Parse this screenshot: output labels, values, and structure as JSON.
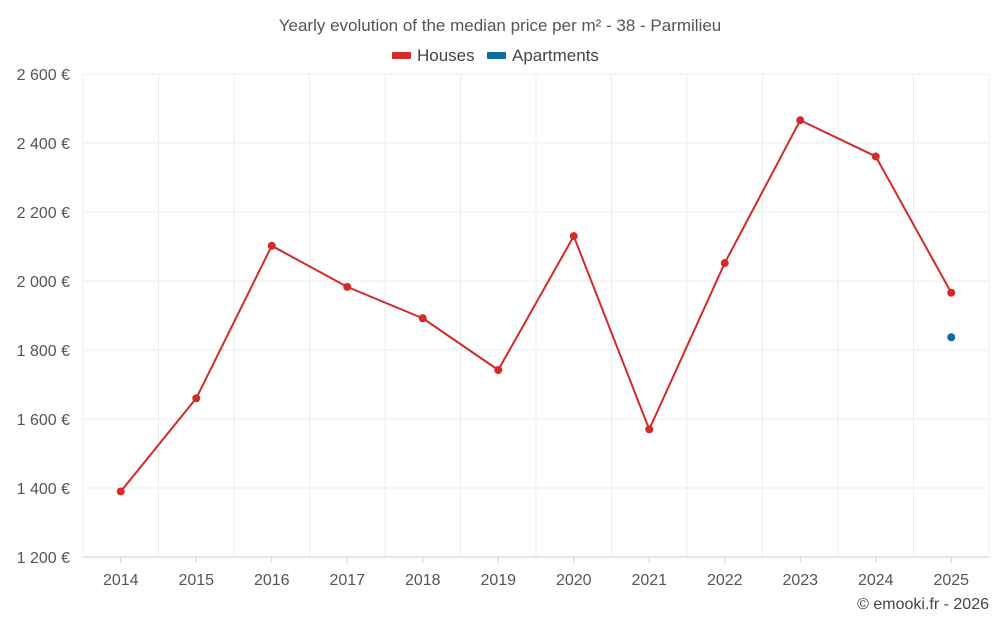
{
  "chart_data": {
    "type": "line",
    "title": "Yearly evolution of the median price per m² - 38 - Parmilieu",
    "categories": [
      "2014",
      "2015",
      "2016",
      "2017",
      "2018",
      "2019",
      "2020",
      "2021",
      "2022",
      "2023",
      "2024",
      "2025"
    ],
    "series": [
      {
        "name": "Houses",
        "color": "#d32a2a",
        "values": [
          1390,
          1660,
          2102,
          1983,
          1892,
          1742,
          2130,
          1570,
          2052,
          2466,
          2361,
          1966
        ]
      },
      {
        "name": "Apartments",
        "color": "#0a6aa1",
        "values": [
          null,
          null,
          null,
          null,
          null,
          null,
          null,
          null,
          null,
          null,
          null,
          1837
        ]
      }
    ],
    "ylim": [
      1200,
      2600
    ],
    "yticks": [
      1200,
      1400,
      1600,
      1800,
      2000,
      2200,
      2400,
      2600
    ],
    "ytick_labels": [
      "1 200 €",
      "1 400 €",
      "1 600 €",
      "1 800 €",
      "2 000 €",
      "2 200 €",
      "2 400 €",
      "2 600 €"
    ],
    "xlabel": "",
    "ylabel": "",
    "grid": true,
    "legend_position": "top-center"
  },
  "credit": "© emooki.fr - 2026"
}
